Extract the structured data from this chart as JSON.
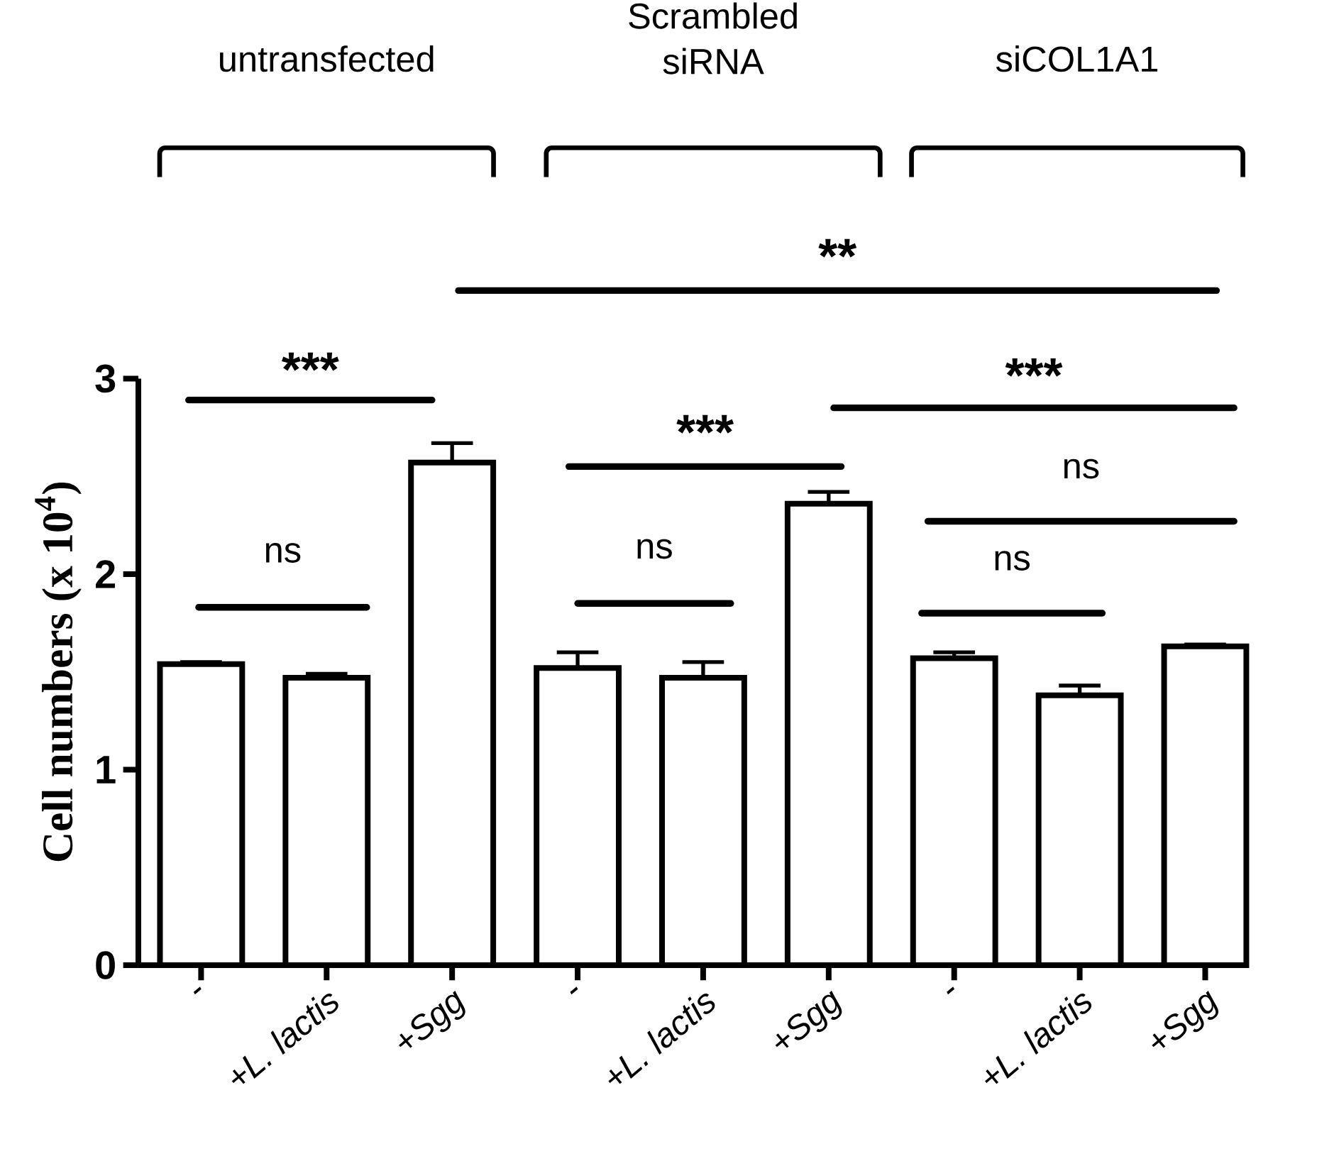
{
  "chart_data": {
    "type": "bar",
    "ylabel": "Cell numbers (x 10$^{4}$)",
    "categories": [
      "-",
      "+L. lactis",
      "+Sgg",
      "-",
      "+L. lactis",
      "+Sgg",
      "-",
      "+L. lactis",
      "+Sgg"
    ],
    "values": [
      1.54,
      1.47,
      2.57,
      1.52,
      1.47,
      2.36,
      1.57,
      1.38,
      1.63
    ],
    "errors": [
      [
        1.54,
        1.55
      ],
      [
        1.47,
        1.49
      ],
      [
        2.57,
        2.67
      ],
      [
        1.52,
        1.6
      ],
      [
        1.47,
        1.55
      ],
      [
        2.36,
        2.42
      ],
      [
        1.57,
        1.6
      ],
      [
        1.38,
        1.43
      ],
      [
        1.63,
        1.64
      ]
    ],
    "color": "#ffffff",
    "ylim": [
      0,
      3
    ],
    "yticks": [
      0,
      1,
      2,
      3
    ],
    "annotations": [
      "untransfected",
      "Scrambled siRNA",
      "siCOL1A1",
      "***",
      "ns",
      "***",
      "ns",
      "***",
      "ns",
      "ns",
      "**"
    ]
  }
}
